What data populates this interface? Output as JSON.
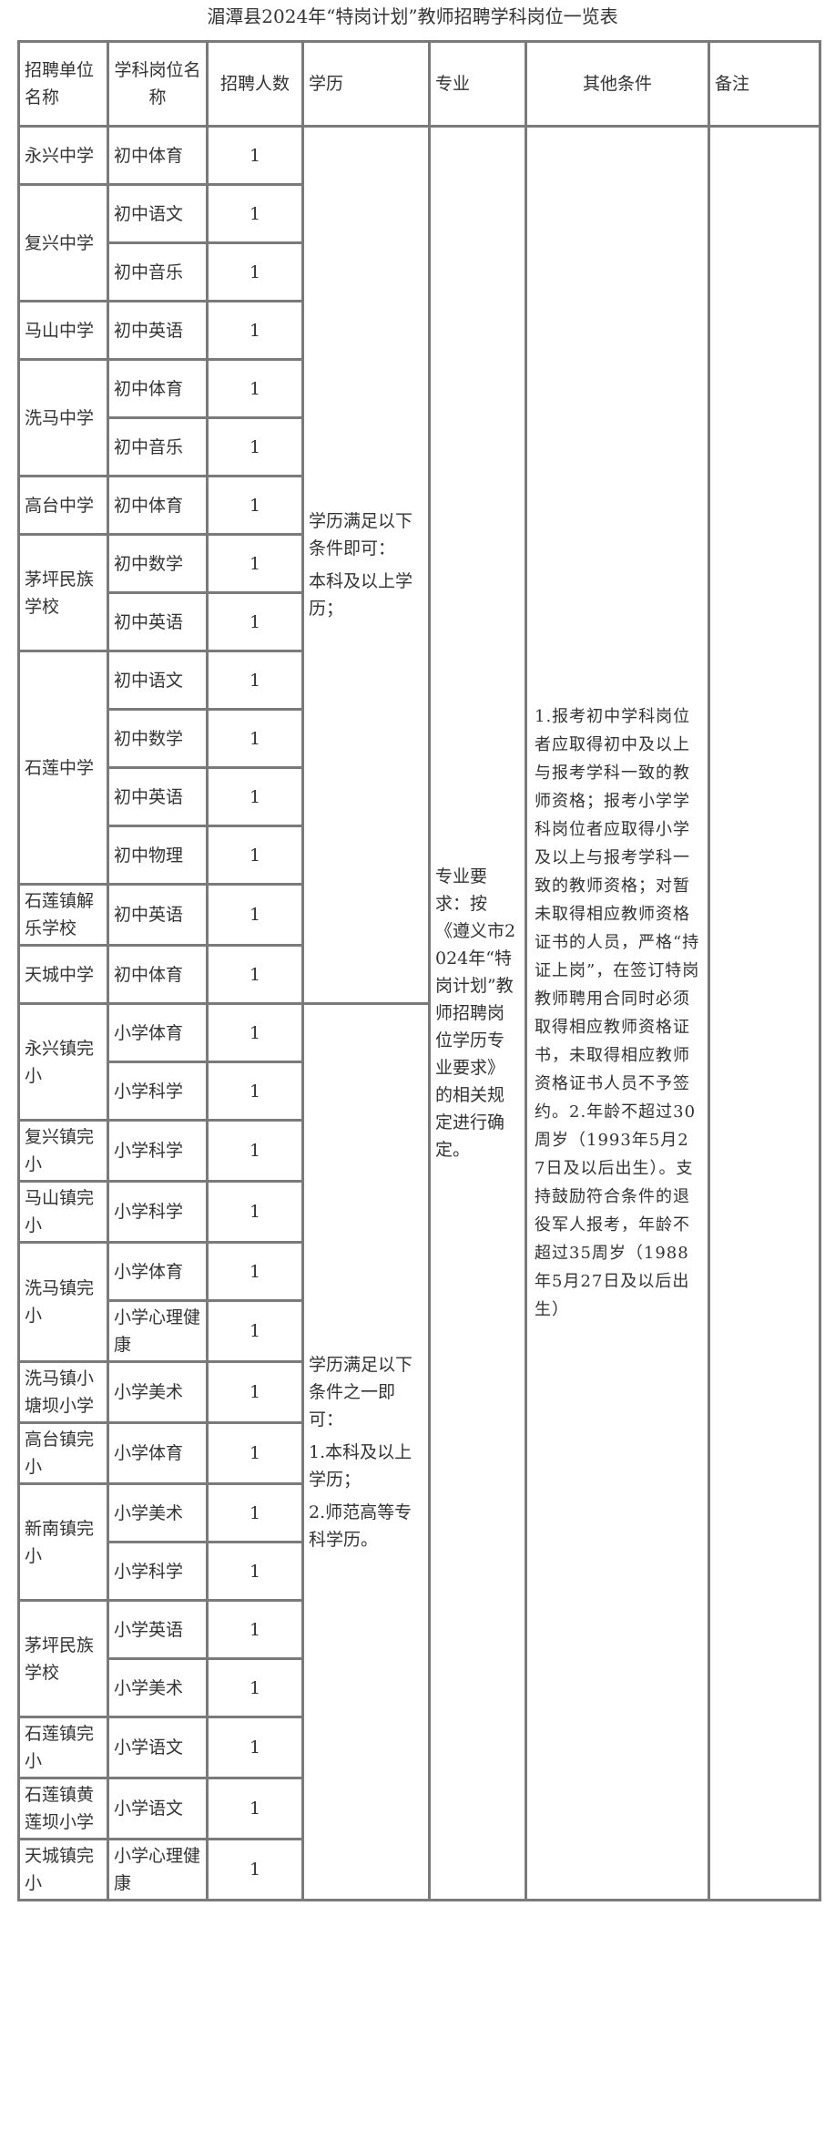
{
  "title": "湄潭县2024年“特岗计划”教师招聘学科岗位一览表",
  "headers": {
    "unit": "招聘单位名称",
    "subject": "学科岗位名称",
    "count": "招聘人数",
    "education": "学历",
    "major": "专业",
    "other": "其他条件",
    "remarks": "备注"
  },
  "units": [
    {
      "name": "永兴中学",
      "posts": [
        {
          "subject": "初中体育",
          "count": "1"
        }
      ]
    },
    {
      "name": "复兴中学",
      "posts": [
        {
          "subject": "初中语文",
          "count": "1"
        },
        {
          "subject": "初中音乐",
          "count": "1"
        }
      ]
    },
    {
      "name": "马山中学",
      "posts": [
        {
          "subject": "初中英语",
          "count": "1"
        }
      ]
    },
    {
      "name": "洗马中学",
      "posts": [
        {
          "subject": "初中体育",
          "count": "1"
        },
        {
          "subject": "初中音乐",
          "count": "1"
        }
      ]
    },
    {
      "name": "高台中学",
      "posts": [
        {
          "subject": "初中体育",
          "count": "1"
        }
      ]
    },
    {
      "name": "茅坪民族学校",
      "posts": [
        {
          "subject": "初中数学",
          "count": "1"
        },
        {
          "subject": "初中英语",
          "count": "1"
        }
      ]
    },
    {
      "name": "石莲中学",
      "posts": [
        {
          "subject": "初中语文",
          "count": "1"
        },
        {
          "subject": "初中数学",
          "count": "1"
        },
        {
          "subject": "初中英语",
          "count": "1"
        },
        {
          "subject": "初中物理",
          "count": "1"
        }
      ]
    },
    {
      "name": "石莲镇解乐学校",
      "posts": [
        {
          "subject": "初中英语",
          "count": "1"
        }
      ]
    },
    {
      "name": "天城中学",
      "posts": [
        {
          "subject": "初中体育",
          "count": "1"
        }
      ]
    },
    {
      "name": "永兴镇完小",
      "posts": [
        {
          "subject": "小学体育",
          "count": "1"
        },
        {
          "subject": "小学科学",
          "count": "1"
        }
      ]
    },
    {
      "name": "复兴镇完小",
      "posts": [
        {
          "subject": "小学科学",
          "count": "1"
        }
      ]
    },
    {
      "name": "马山镇完小",
      "posts": [
        {
          "subject": "小学科学",
          "count": "1"
        }
      ]
    },
    {
      "name": "洗马镇完小",
      "posts": [
        {
          "subject": "小学体育",
          "count": "1"
        },
        {
          "subject": "小学心理健康",
          "count": "1"
        }
      ]
    },
    {
      "name": "洗马镇小塘坝小学",
      "posts": [
        {
          "subject": "小学美术",
          "count": "1"
        }
      ]
    },
    {
      "name": "高台镇完小",
      "posts": [
        {
          "subject": "小学体育",
          "count": "1"
        }
      ]
    },
    {
      "name": "新南镇完小",
      "posts": [
        {
          "subject": "小学美术",
          "count": "1"
        },
        {
          "subject": "小学科学",
          "count": "1"
        }
      ]
    },
    {
      "name": "茅坪民族学校",
      "posts": [
        {
          "subject": "小学英语",
          "count": "1"
        },
        {
          "subject": "小学美术",
          "count": "1"
        }
      ]
    },
    {
      "name": "石莲镇完小",
      "posts": [
        {
          "subject": "小学语文",
          "count": "1"
        }
      ]
    },
    {
      "name": "石莲镇黄莲坝小学",
      "posts": [
        {
          "subject": "小学语文",
          "count": "1"
        }
      ]
    },
    {
      "name": "天城镇完小",
      "posts": [
        {
          "subject": "小学心理健康",
          "count": "1"
        }
      ]
    }
  ],
  "education_blocks": [
    {
      "rows": 15,
      "lines": [
        "学历满足以下条件即可：",
        "本科及以上学历；"
      ]
    },
    {
      "rows": 15,
      "lines": [
        "学历满足以下条件之一即可：",
        "1.本科及以上学历；",
        "2.师范高等专科学历。"
      ]
    }
  ],
  "major": "专业要求：按《遵义市2024年“特岗计划”教师招聘岗位学历专业要求》的相关规定进行确定。",
  "other_conditions": "1.报考初中学科岗位者应取得初中及以上与报考学科一致的教师资格；报考小学学科岗位者应取得小学及以上与报考学科一致的教师资格；对暂未取得相应教师资格证书的人员，严格“持证上岗”，在签订特岗教师聘用合同时必须取得相应教师资格证书，未取得相应教师资格证书人员不予签约。2.年龄不超过30周岁（1993年5月27日及以后出生）。支持鼓励符合条件的退役军人报考，年龄不超过35周岁（1988年5月27日及以后出生）",
  "remarks": ""
}
